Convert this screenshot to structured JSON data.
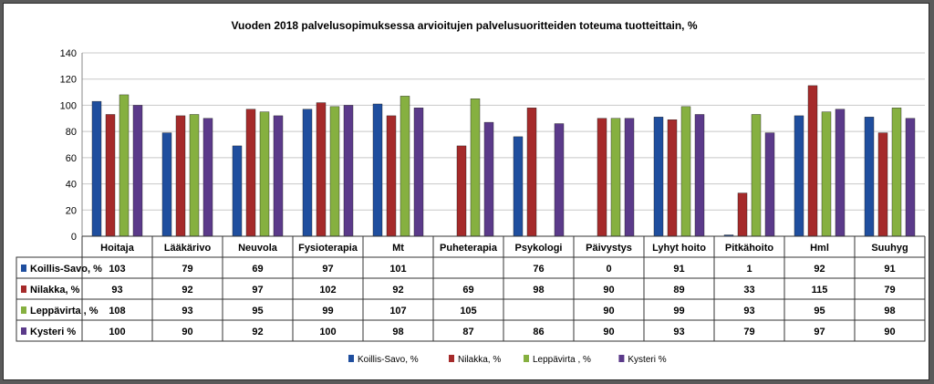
{
  "chart_data": {
    "type": "bar",
    "title": "Vuoden 2018 palvelusopimuksessa arvioitujen palvelusuoritteiden toteuma tuotteittain, %",
    "categories": [
      "Hoitaja",
      "Lääkärivo",
      "Neuvola",
      "Fysioterapia",
      "Mt",
      "Puheterapia",
      "Psykologi",
      "Päivystys",
      "Lyhyt hoito",
      "Pitkähoito",
      "Hml",
      "Suuhyg"
    ],
    "ylim": [
      0,
      140
    ],
    "yticks": [
      0,
      20,
      40,
      60,
      80,
      100,
      120,
      140
    ],
    "grid": true,
    "legend_position": "bottom",
    "series": [
      {
        "name": "Koillis-Savo, %",
        "color": "#1f4e9e",
        "values": [
          103,
          79,
          69,
          97,
          101,
          null,
          76,
          0,
          91,
          1,
          92,
          91
        ]
      },
      {
        "name": "Nilakka, %",
        "color": "#a52a2a",
        "values": [
          93,
          92,
          97,
          102,
          92,
          69,
          98,
          90,
          89,
          33,
          115,
          79
        ]
      },
      {
        "name": "Leppävirta , %",
        "color": "#86b040",
        "values": [
          108,
          93,
          95,
          99,
          107,
          105,
          null,
          90,
          99,
          93,
          95,
          98
        ]
      },
      {
        "name": "Kysteri %",
        "color": "#5b3a8a",
        "values": [
          100,
          90,
          92,
          100,
          98,
          87,
          86,
          90,
          93,
          79,
          97,
          90
        ]
      }
    ]
  }
}
